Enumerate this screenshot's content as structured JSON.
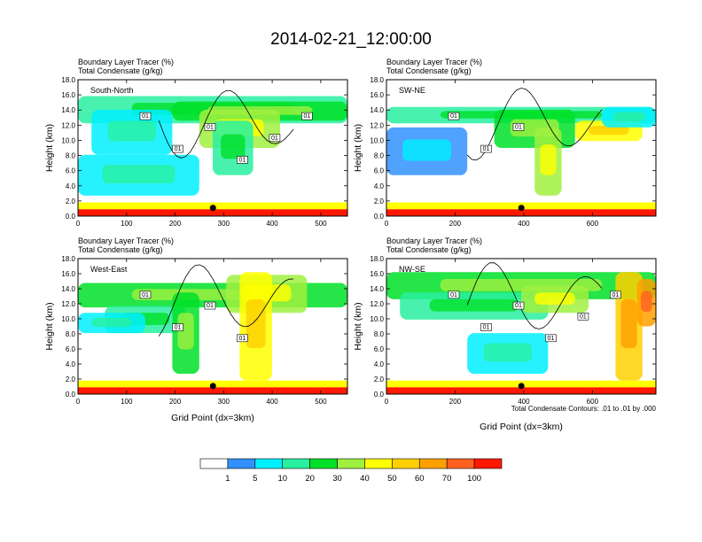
{
  "figure": {
    "title": "2014-02-21_12:00:00",
    "contour_note": "Total Condensate Contours: .01 to .01 by .000",
    "colorbar": {
      "colors": [
        "#ffffff",
        "#3390ff",
        "#00f0ff",
        "#28f0a0",
        "#00e028",
        "#a0f040",
        "#ffff00",
        "#ffd000",
        "#ffa000",
        "#ff6020",
        "#ff1800"
      ],
      "labels": [
        "1",
        "5",
        "10",
        "20",
        "30",
        "40",
        "50",
        "60",
        "70",
        "100"
      ]
    }
  },
  "chart_data": [
    {
      "type": "heatmap",
      "panel_label": "South-North",
      "subtitle_1": "Boundary Layer Tracer   (%)",
      "subtitle_2": "Total Condensate   (g/kg)",
      "xlabel": "",
      "ylabel": "Height (km)",
      "xlim": [
        0,
        555
      ],
      "ylim": [
        0,
        18
      ],
      "xticks": [
        0,
        100,
        200,
        300,
        400,
        500
      ],
      "yticks": [
        "0.0",
        "2.0",
        "4.0",
        "6.0",
        "8.0",
        "10.0",
        "12.0",
        "14.0",
        "16.0",
        "18.0"
      ],
      "contour_labels": [
        "01",
        "01",
        "01",
        "01",
        "01",
        "01"
      ],
      "marker_x": 278
    },
    {
      "type": "heatmap",
      "panel_label": "SW-NE",
      "subtitle_1": "Boundary Layer Tracer   (%)",
      "subtitle_2": "Total Condensate   (g/kg)",
      "xlabel": "",
      "ylabel": "Height (km)",
      "xlim": [
        0,
        785
      ],
      "ylim": [
        0,
        18
      ],
      "xticks": [
        0,
        200,
        400,
        600
      ],
      "yticks": [
        "0.0",
        "2.0",
        "4.0",
        "6.0",
        "8.0",
        "10.0",
        "12.0",
        "14.0",
        "16.0",
        "18.0"
      ],
      "contour_labels": [
        "01",
        "01",
        "01"
      ],
      "marker_x": 393
    },
    {
      "type": "heatmap",
      "panel_label": "West-East",
      "subtitle_1": "Boundary Layer Tracer   (%)",
      "subtitle_2": "Total Condensate   (g/kg)",
      "xlabel": "Grid Point (dx=3km)",
      "ylabel": "Height (km)",
      "xlim": [
        0,
        555
      ],
      "ylim": [
        0,
        18
      ],
      "xticks": [
        0,
        100,
        200,
        300,
        400,
        500
      ],
      "yticks": [
        "0.0",
        "2.0",
        "4.0",
        "6.0",
        "8.0",
        "10.0",
        "12.0",
        "14.0",
        "16.0",
        "18.0"
      ],
      "contour_labels": [
        "01",
        "01",
        "01",
        "01"
      ],
      "marker_x": 278
    },
    {
      "type": "heatmap",
      "panel_label": "NW-SE",
      "subtitle_1": "Boundary Layer Tracer   (%)",
      "subtitle_2": "Total Condensate   (g/kg)",
      "xlabel": "Grid Point (dx=3km)",
      "ylabel": "Height (km)",
      "xlim": [
        0,
        785
      ],
      "ylim": [
        0,
        18
      ],
      "xticks": [
        0,
        200,
        400,
        600
      ],
      "yticks": [
        "0.0",
        "2.0",
        "4.0",
        "6.0",
        "8.0",
        "10.0",
        "12.0",
        "14.0",
        "16.0",
        "18.0"
      ],
      "contour_labels": [
        "01",
        "01",
        "01",
        "01",
        "01",
        "01"
      ],
      "marker_x": 393
    }
  ]
}
